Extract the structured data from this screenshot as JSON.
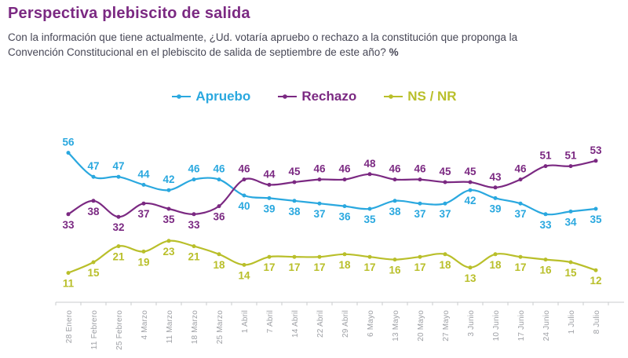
{
  "title": "Perspectiva plebiscito de salida",
  "subtitle": {
    "line1": "Con la información que tiene actualmente, ¿Ud. votaría apruebo o rechazo a la constitución que proponga la",
    "line2": "Convención Constitucional en el plebiscito de salida de septiembre de este año?",
    "suffix": "%"
  },
  "colors": {
    "title": "#7B2982",
    "subtitle": "#474756",
    "axis_line": "#C9CBCE",
    "axis_labels": "#9EA0A5",
    "background": "#FFFFFF"
  },
  "icons": {
    "legend_marker": "line-with-dot-icon"
  },
  "chart_data": {
    "type": "line",
    "title": "Perspectiva plebiscito de salida",
    "xlabel": "",
    "ylabel": "",
    "ylim": [
      0,
      60
    ],
    "grid": false,
    "legend_position": "top-center",
    "data_labels": true,
    "categories": [
      "28 Enero",
      "11 Febrero",
      "25 Febrero",
      "4 Marzo",
      "11 Marzo",
      "18 Marzo",
      "25 Marzo",
      "1 Abril",
      "7 Abril",
      "14 Abril",
      "22 Abril",
      "29 Abril",
      "6 Mayo",
      "13 Mayo",
      "20 Mayo",
      "27 Mayo",
      "3 Junio",
      "10 Junio",
      "17 Junio",
      "24 Junio",
      "1 Julio",
      "8 Julio"
    ],
    "series": [
      {
        "name": "Apruebo",
        "color": "#2AA8DF",
        "values": [
          56,
          47,
          47,
          44,
          42,
          46,
          46,
          40,
          39,
          38,
          37,
          36,
          35,
          38,
          37,
          37,
          42,
          39,
          37,
          33,
          34,
          35
        ]
      },
      {
        "name": "Rechazo",
        "color": "#7B2982",
        "values": [
          33,
          38,
          32,
          37,
          35,
          33,
          36,
          46,
          44,
          45,
          46,
          46,
          48,
          46,
          46,
          45,
          45,
          43,
          46,
          51,
          51,
          53
        ]
      },
      {
        "name": "NS / NR",
        "color": "#B9BF2A",
        "values": [
          11,
          15,
          21,
          19,
          23,
          21,
          18,
          14,
          17,
          17,
          17,
          18,
          17,
          16,
          17,
          18,
          13,
          18,
          17,
          16,
          15,
          12
        ]
      }
    ]
  }
}
